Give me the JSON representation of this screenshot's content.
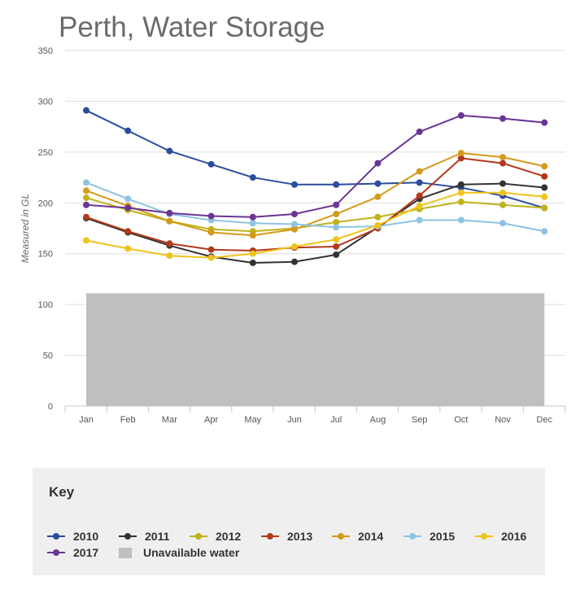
{
  "title": "Perth, Water Storage",
  "key_title": "Key",
  "colors": {
    "unavailable": "#bfbfbf",
    "grid": "#dddddd",
    "axis_text": "#555555"
  },
  "chart_data": {
    "type": "line",
    "title": "Perth, Water Storage",
    "ylabel": "Measured in GL",
    "xlabel": "",
    "ylim": [
      0,
      350
    ],
    "yticks": [
      0,
      50,
      100,
      150,
      200,
      250,
      300,
      350
    ],
    "grid": true,
    "legend_placement": "bottom",
    "categories": [
      "Jan",
      "Feb",
      "Mar",
      "Apr",
      "May",
      "Jun",
      "Jul",
      "Aug",
      "Sep",
      "Oct",
      "Nov",
      "Dec"
    ],
    "unavailable_water": {
      "name": "Unavailable water",
      "value": 111,
      "color": "#bfbfbf"
    },
    "series": [
      {
        "name": "2010",
        "color": "#2a4c9c",
        "values": [
          291,
          271,
          251,
          238,
          225,
          218,
          218,
          219,
          220,
          215,
          207,
          195
        ]
      },
      {
        "name": "2011",
        "color": "#333333",
        "values": [
          185,
          171,
          158,
          147,
          141,
          142,
          149,
          176,
          204,
          218,
          219,
          215
        ]
      },
      {
        "name": "2012",
        "color": "#bfb31a",
        "values": [
          205,
          193,
          182,
          174,
          172,
          175,
          181,
          186,
          194,
          201,
          198,
          195
        ]
      },
      {
        "name": "2013",
        "color": "#b23a1b",
        "values": [
          186,
          172,
          160,
          154,
          153,
          156,
          157,
          175,
          207,
          244,
          239,
          226
        ]
      },
      {
        "name": "2014",
        "color": "#d49a1a",
        "values": [
          212,
          197,
          182,
          171,
          168,
          174,
          189,
          206,
          231,
          249,
          245,
          236
        ]
      },
      {
        "name": "2015",
        "color": "#8ec3e4",
        "values": [
          220,
          204,
          189,
          183,
          180,
          179,
          176,
          177,
          183,
          183,
          180,
          172
        ]
      },
      {
        "name": "2016",
        "color": "#f0c31a",
        "values": [
          163,
          155,
          148,
          146,
          150,
          157,
          164,
          178,
          197,
          210,
          210,
          206
        ]
      },
      {
        "name": "2017",
        "color": "#6a3594",
        "values": [
          198,
          195,
          190,
          187,
          186,
          189,
          198,
          239,
          270,
          286,
          283,
          279
        ]
      }
    ]
  }
}
